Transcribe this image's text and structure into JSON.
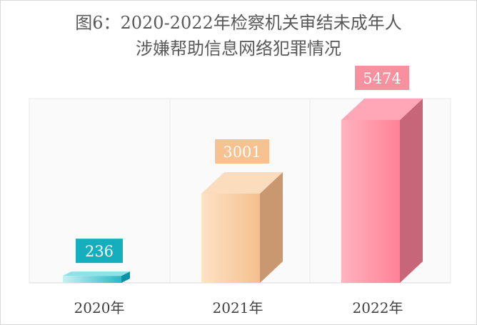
{
  "chart_data": {
    "type": "bar",
    "title_line1": "图6：2020-2022年检察机关审结未成年人",
    "title_line2": "涉嫌帮助信息网络犯罪情况",
    "categories": [
      "2020年",
      "2021年",
      "2022年"
    ],
    "values": [
      236,
      3001,
      5474
    ],
    "value_labels": [
      "236",
      "3001",
      "5474"
    ],
    "ylim": [
      0,
      5474
    ],
    "grid": false,
    "legend": "none",
    "colors": {
      "bar_front": [
        "#5dcfd6",
        "#f7c99a",
        "#ff8a9e"
      ],
      "bar_side": [
        "#0d93a6",
        "#c99870",
        "#c76679"
      ],
      "bar_top": [
        "#8be3e8",
        "#fbdcbc",
        "#ffa7b6"
      ],
      "label_bg": [
        "#14aebd",
        "#f7c290",
        "#f7919f"
      ]
    }
  }
}
